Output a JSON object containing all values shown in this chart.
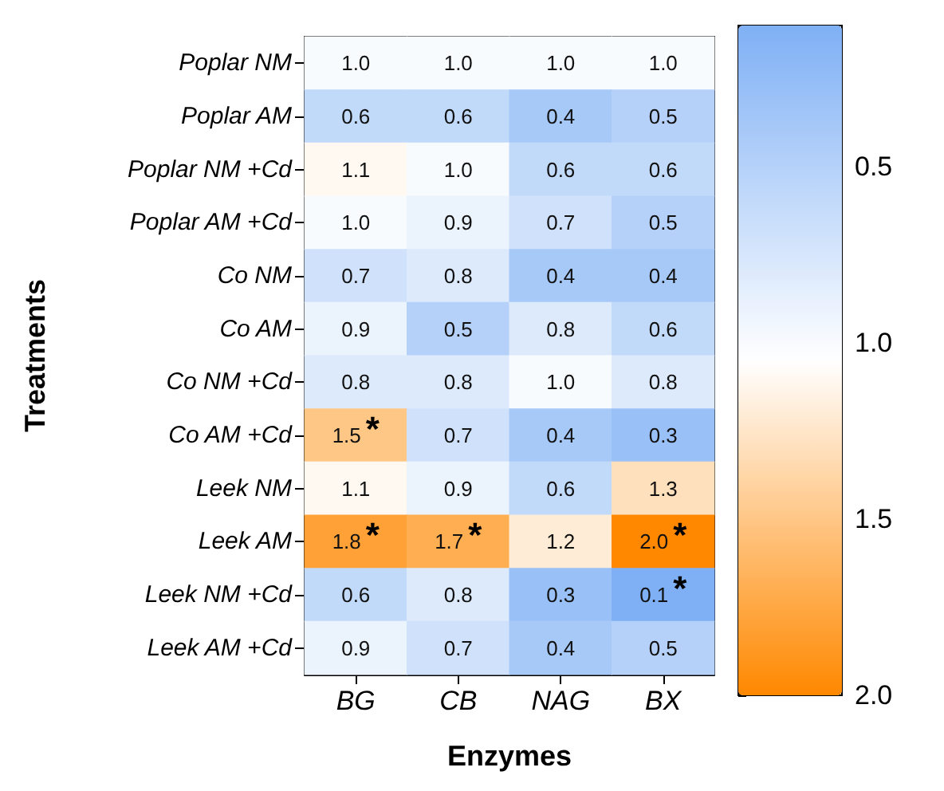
{
  "chart_data": {
    "type": "heatmap",
    "xlabel": "Enzymes",
    "ylabel": "Treatments",
    "categories": [
      "BG",
      "CB",
      "NAG",
      "BX"
    ],
    "y_categories": [
      "Poplar NM",
      "Poplar AM",
      "Poplar NM +Cd",
      "Poplar AM +Cd",
      "Co NM",
      "Co AM",
      "Co NM +Cd",
      "Co AM +Cd",
      "Leek NM",
      "Leek AM",
      "Leek NM +Cd",
      "Leek AM +Cd"
    ],
    "cells": [
      [
        1.0,
        1.0,
        1.0,
        1.0
      ],
      [
        0.6,
        0.6,
        0.4,
        0.5
      ],
      [
        1.1,
        1.0,
        0.6,
        0.6
      ],
      [
        1.0,
        0.9,
        0.7,
        0.5
      ],
      [
        0.7,
        0.8,
        0.4,
        0.4
      ],
      [
        0.9,
        0.5,
        0.8,
        0.6
      ],
      [
        0.8,
        0.8,
        1.0,
        0.8
      ],
      [
        1.5,
        0.7,
        0.4,
        0.3
      ],
      [
        1.1,
        0.9,
        0.6,
        1.3
      ],
      [
        1.8,
        1.7,
        1.2,
        2.0
      ],
      [
        0.6,
        0.8,
        0.3,
        0.1
      ],
      [
        0.9,
        0.7,
        0.4,
        0.5
      ]
    ],
    "cell_labels": [
      [
        "1.0",
        "1.0",
        "1.0",
        "1.0"
      ],
      [
        "0.6",
        "0.6",
        "0.4",
        "0.5"
      ],
      [
        "1.1",
        "1.0",
        "0.6",
        "0.6"
      ],
      [
        "1.0",
        "0.9",
        "0.7",
        "0.5"
      ],
      [
        "0.7",
        "0.8",
        "0.4",
        "0.4"
      ],
      [
        "0.9",
        "0.5",
        "0.8",
        "0.6"
      ],
      [
        "0.8",
        "0.8",
        "1.0",
        "0.8"
      ],
      [
        "1.5*",
        "0.7",
        "0.4",
        "0.3"
      ],
      [
        "1.1",
        "0.9",
        "0.6",
        "1.3"
      ],
      [
        "1.8*",
        "1.7*",
        "1.2",
        "2.0*"
      ],
      [
        "0.6",
        "0.8",
        "0.3",
        "0.1*"
      ],
      [
        "0.9",
        "0.7",
        "0.4",
        "0.5"
      ]
    ],
    "data_labels": true,
    "clim": [
      0.1,
      2.0
    ],
    "cticks": [
      {
        "value": 0.5,
        "label": "0.5"
      },
      {
        "value": 1.0,
        "label": "1.0"
      },
      {
        "value": 1.5,
        "label": "1.5"
      },
      {
        "value": 2.0,
        "label": "2.0"
      }
    ]
  }
}
